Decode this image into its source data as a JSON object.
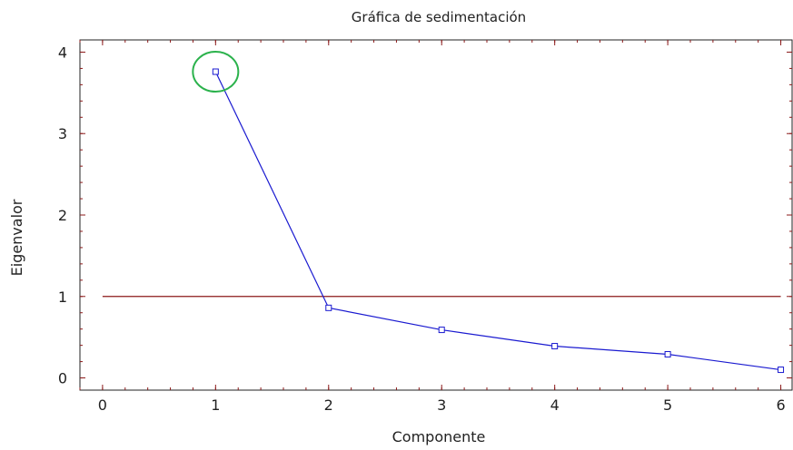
{
  "chart_data": {
    "type": "line",
    "title": "Gráfica de sedimentación",
    "xlabel": "Componente",
    "ylabel": "Eigenvalor",
    "xlim": [
      -0.2,
      6.1
    ],
    "ylim": [
      -0.15,
      4.15
    ],
    "xticks": [
      0,
      1,
      2,
      3,
      4,
      5,
      6
    ],
    "yticks": [
      0,
      1,
      2,
      3,
      4
    ],
    "grid": false,
    "series": [
      {
        "x": [
          1,
          2,
          3,
          4,
          5,
          6
        ],
        "values": [
          3.76,
          0.86,
          0.59,
          0.39,
          0.29,
          0.1
        ],
        "color": "#1a1ad0",
        "marker": "square"
      }
    ],
    "reference_line": {
      "y": 1,
      "x_range": [
        0,
        6
      ],
      "color": "#8b1a1a"
    },
    "highlight": {
      "x": 1,
      "y": 3.76,
      "shape": "ellipse",
      "color": "#2bb24c"
    },
    "frame_color": "#8b1a1a"
  }
}
